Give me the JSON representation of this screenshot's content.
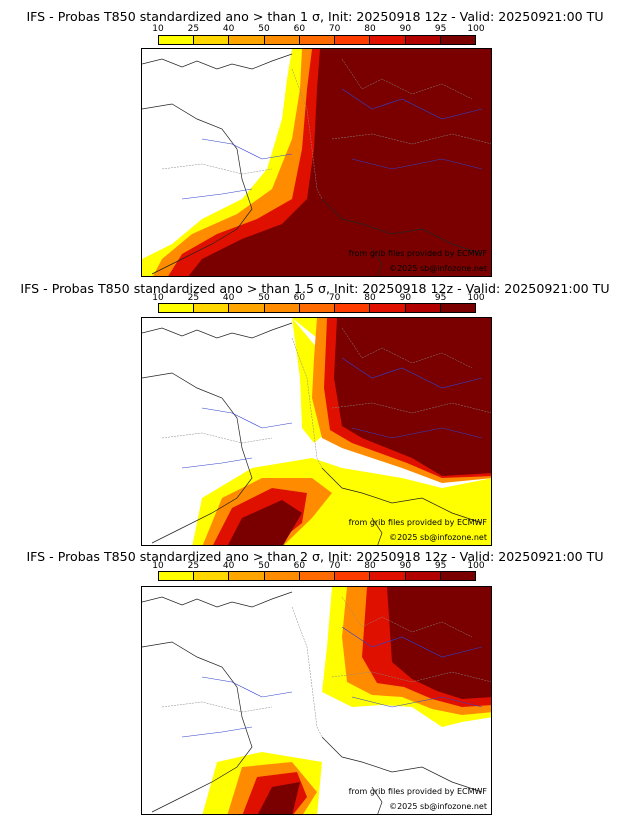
{
  "panels": [
    {
      "title": "IFS - Probas T850  standardized ano > than 1 σ, Init: 20250918 12z - Valid: 20250921:00 TU"
    },
    {
      "title": "IFS - Probas T850  standardized ano > than 1.5 σ, Init: 20250918 12z - Valid: 20250921:00 TU"
    },
    {
      "title": "IFS - Probas T850  standardized ano > than 2 σ, Init: 20250918 12z - Valid: 20250921:00 TU"
    }
  ],
  "colorbar": {
    "ticks": [
      "10",
      "25",
      "40",
      "50",
      "60",
      "70",
      "80",
      "90",
      "95",
      "100"
    ],
    "colors": [
      "#ffff00",
      "#ffd700",
      "#ffa500",
      "#ff8c00",
      "#ff6a00",
      "#ff3c00",
      "#e01000",
      "#b00000",
      "#7a0000"
    ]
  },
  "credits": {
    "source": "from grib files provided by ECMWF",
    "copyright": "©2025 sb@infozone.net"
  }
}
